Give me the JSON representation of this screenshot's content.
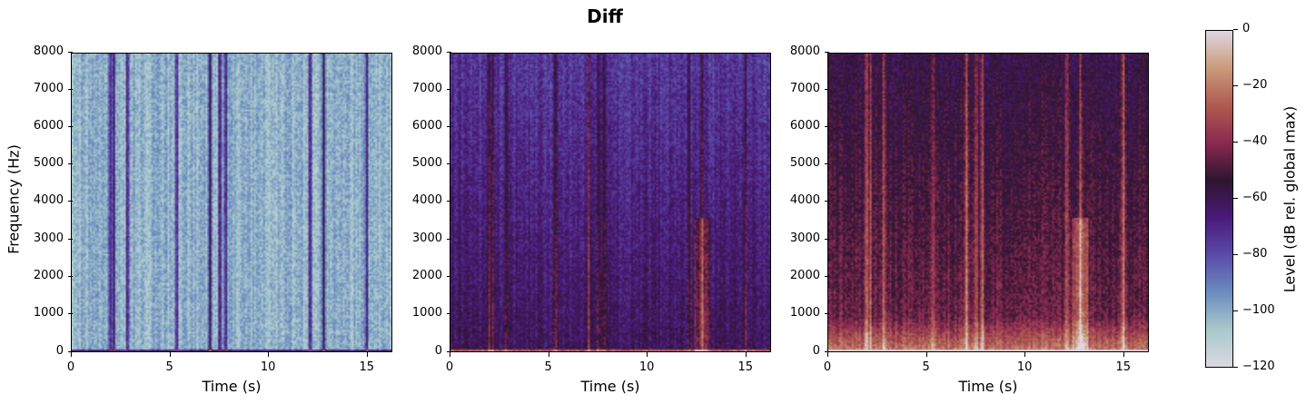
{
  "suptitle": "Diff",
  "chart_data": {
    "type": "heatmap",
    "title": "Diff",
    "panels": [
      {
        "name": "panel-1",
        "xlabel": "Time (s)",
        "ylabel": "Frequency (Hz)",
        "xlim": [
          0,
          16.3
        ],
        "ylim": [
          0,
          8000
        ],
        "xticks": [
          0,
          5,
          10,
          15
        ],
        "yticks": [
          0,
          1000,
          2000,
          3000,
          4000,
          5000,
          6000,
          7000,
          8000
        ],
        "description": "mostly near -120 dB (pale) with sparse dark vertical bands near 1.9s, 2.8s, 7.0s, 7.5s, 12.1s"
      },
      {
        "name": "panel-2",
        "xlabel": "Time (s)",
        "ylabel": "",
        "xlim": [
          0,
          16.3
        ],
        "ylim": [
          0,
          8000
        ],
        "xticks": [
          0,
          5,
          10,
          15
        ],
        "yticks": [
          0,
          1000,
          2000,
          3000,
          4000,
          5000,
          6000,
          7000,
          8000
        ],
        "description": "mostly -90 to -100 dB (blue) with darker bands, warm spots near 12.8s below 4000 Hz"
      },
      {
        "name": "panel-3",
        "xlabel": "Time (s)",
        "ylabel": "",
        "xlim": [
          0,
          16.3
        ],
        "ylim": [
          0,
          8000
        ],
        "xticks": [
          0,
          5,
          10,
          15
        ],
        "yticks": [
          0,
          1000,
          2000,
          3000,
          4000,
          5000,
          6000,
          7000,
          8000
        ],
        "description": "mostly -60 to -80 dB (purple) with -30 to -40 dB energy below 1000 Hz and near 12.8s"
      }
    ],
    "colorbar": {
      "label": "Level (dB rel. global max)",
      "range": [
        -120,
        0
      ],
      "ticks": [
        0,
        -20,
        -40,
        -60,
        -80,
        -100,
        -120
      ],
      "colormap": [
        "#e0d6e0",
        "#c99a7a",
        "#b05a50",
        "#8a2a50",
        "#2e1530",
        "#4a1a78",
        "#5b4aa8",
        "#6b8cc0",
        "#a8c8cc",
        "#dcd8e0"
      ]
    }
  },
  "xtick_labels": [
    "0",
    "5",
    "10",
    "15"
  ],
  "ytick_labels": [
    "8000",
    "7000",
    "6000",
    "5000",
    "4000",
    "3000",
    "2000",
    "1000",
    "0"
  ],
  "xlabel": "Time (s)",
  "ylabel": "Frequency (Hz)",
  "cbar_ticks": [
    "0",
    "−20",
    "−40",
    "−60",
    "−80",
    "−100",
    "−120"
  ],
  "cbar_label": "Level (dB rel. global max)"
}
